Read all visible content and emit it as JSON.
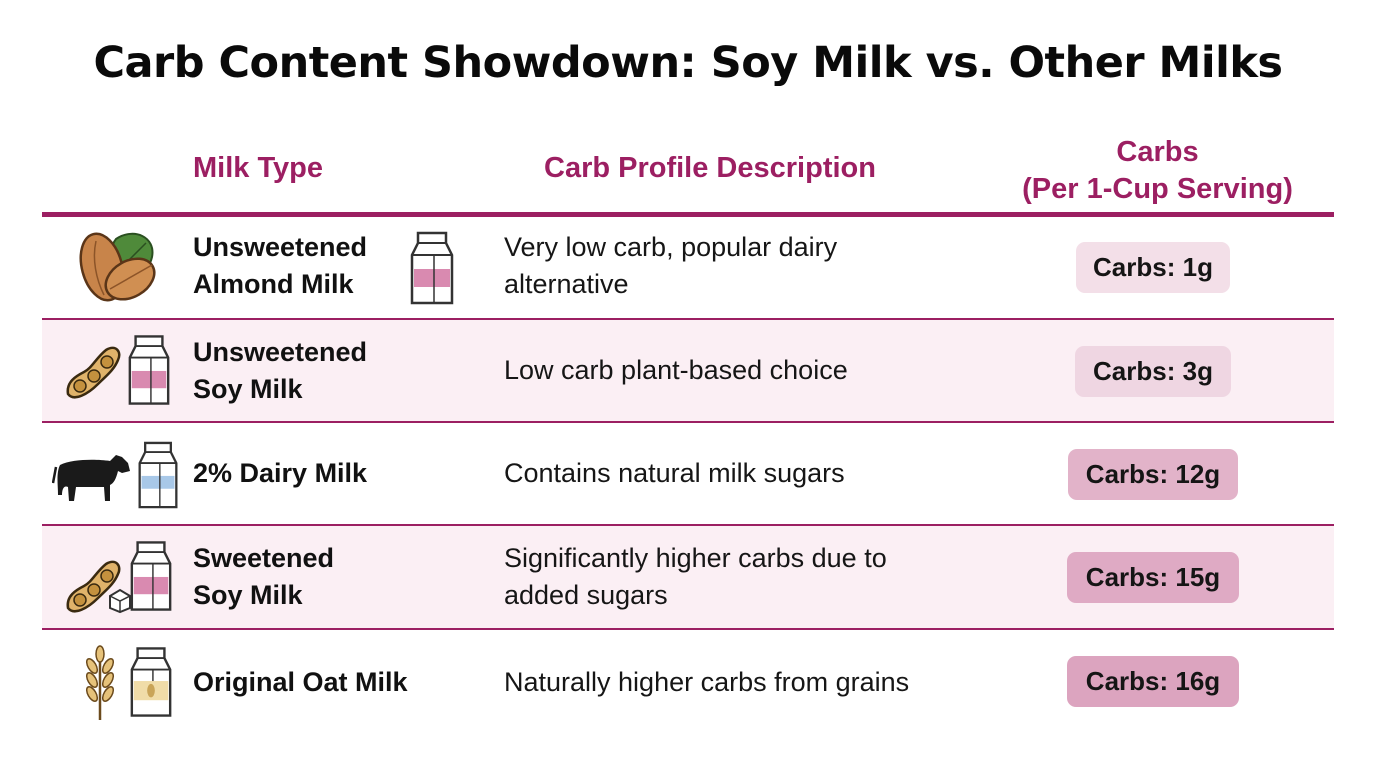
{
  "title": "Carb Content Showdown: Soy Milk vs. Other Milks",
  "headers": {
    "milk_type": "Milk Type",
    "description": "Carb Profile Description",
    "carbs_line1": "Carbs",
    "carbs_line2": "(Per 1-Cup Serving)"
  },
  "rows": [
    {
      "name_line1": "Unsweetened",
      "name_line2": "Almond Milk",
      "desc_line1": "Very low carb, popular dairy",
      "desc_line2": "alternative",
      "carbs": "Carbs: 1g",
      "carbs_value_g": 1,
      "badge_color": "#f3dfe8",
      "icons": [
        "almond-icon",
        "milk-carton-icon"
      ]
    },
    {
      "name_line1": "Unsweetened",
      "name_line2": "Soy Milk",
      "desc_line1": "Low carb plant-based choice",
      "desc_line2": "",
      "carbs": "Carbs: 3g",
      "carbs_value_g": 3,
      "badge_color": "#efd6e2",
      "icons": [
        "soybean-pod-icon",
        "milk-carton-icon"
      ]
    },
    {
      "name_line1": "2% Dairy Milk",
      "name_line2": "",
      "desc_line1": "Contains natural milk sugars",
      "desc_line2": "",
      "carbs": "Carbs: 12g",
      "carbs_value_g": 12,
      "badge_color": "#e2b3c9",
      "icons": [
        "cow-icon",
        "milk-carton-icon"
      ]
    },
    {
      "name_line1": "Sweetened",
      "name_line2": "Soy Milk",
      "desc_line1": "Significantly higher carbs due to",
      "desc_line2": "added sugars",
      "carbs": "Carbs: 15g",
      "carbs_value_g": 15,
      "badge_color": "#dfaac4",
      "icons": [
        "soybean-pod-icon",
        "sugar-cube-icon",
        "milk-carton-icon"
      ]
    },
    {
      "name_line1": "Original Oat Milk",
      "name_line2": "",
      "desc_line1": "Naturally higher carbs from grains",
      "desc_line2": "",
      "carbs": "Carbs: 16g",
      "carbs_value_g": 16,
      "badge_color": "#dca4bf",
      "icons": [
        "wheat-icon",
        "milk-carton-icon"
      ]
    }
  ],
  "colors": {
    "accent": "#9c1f62",
    "row_alt_bg": "#fbeff4"
  }
}
